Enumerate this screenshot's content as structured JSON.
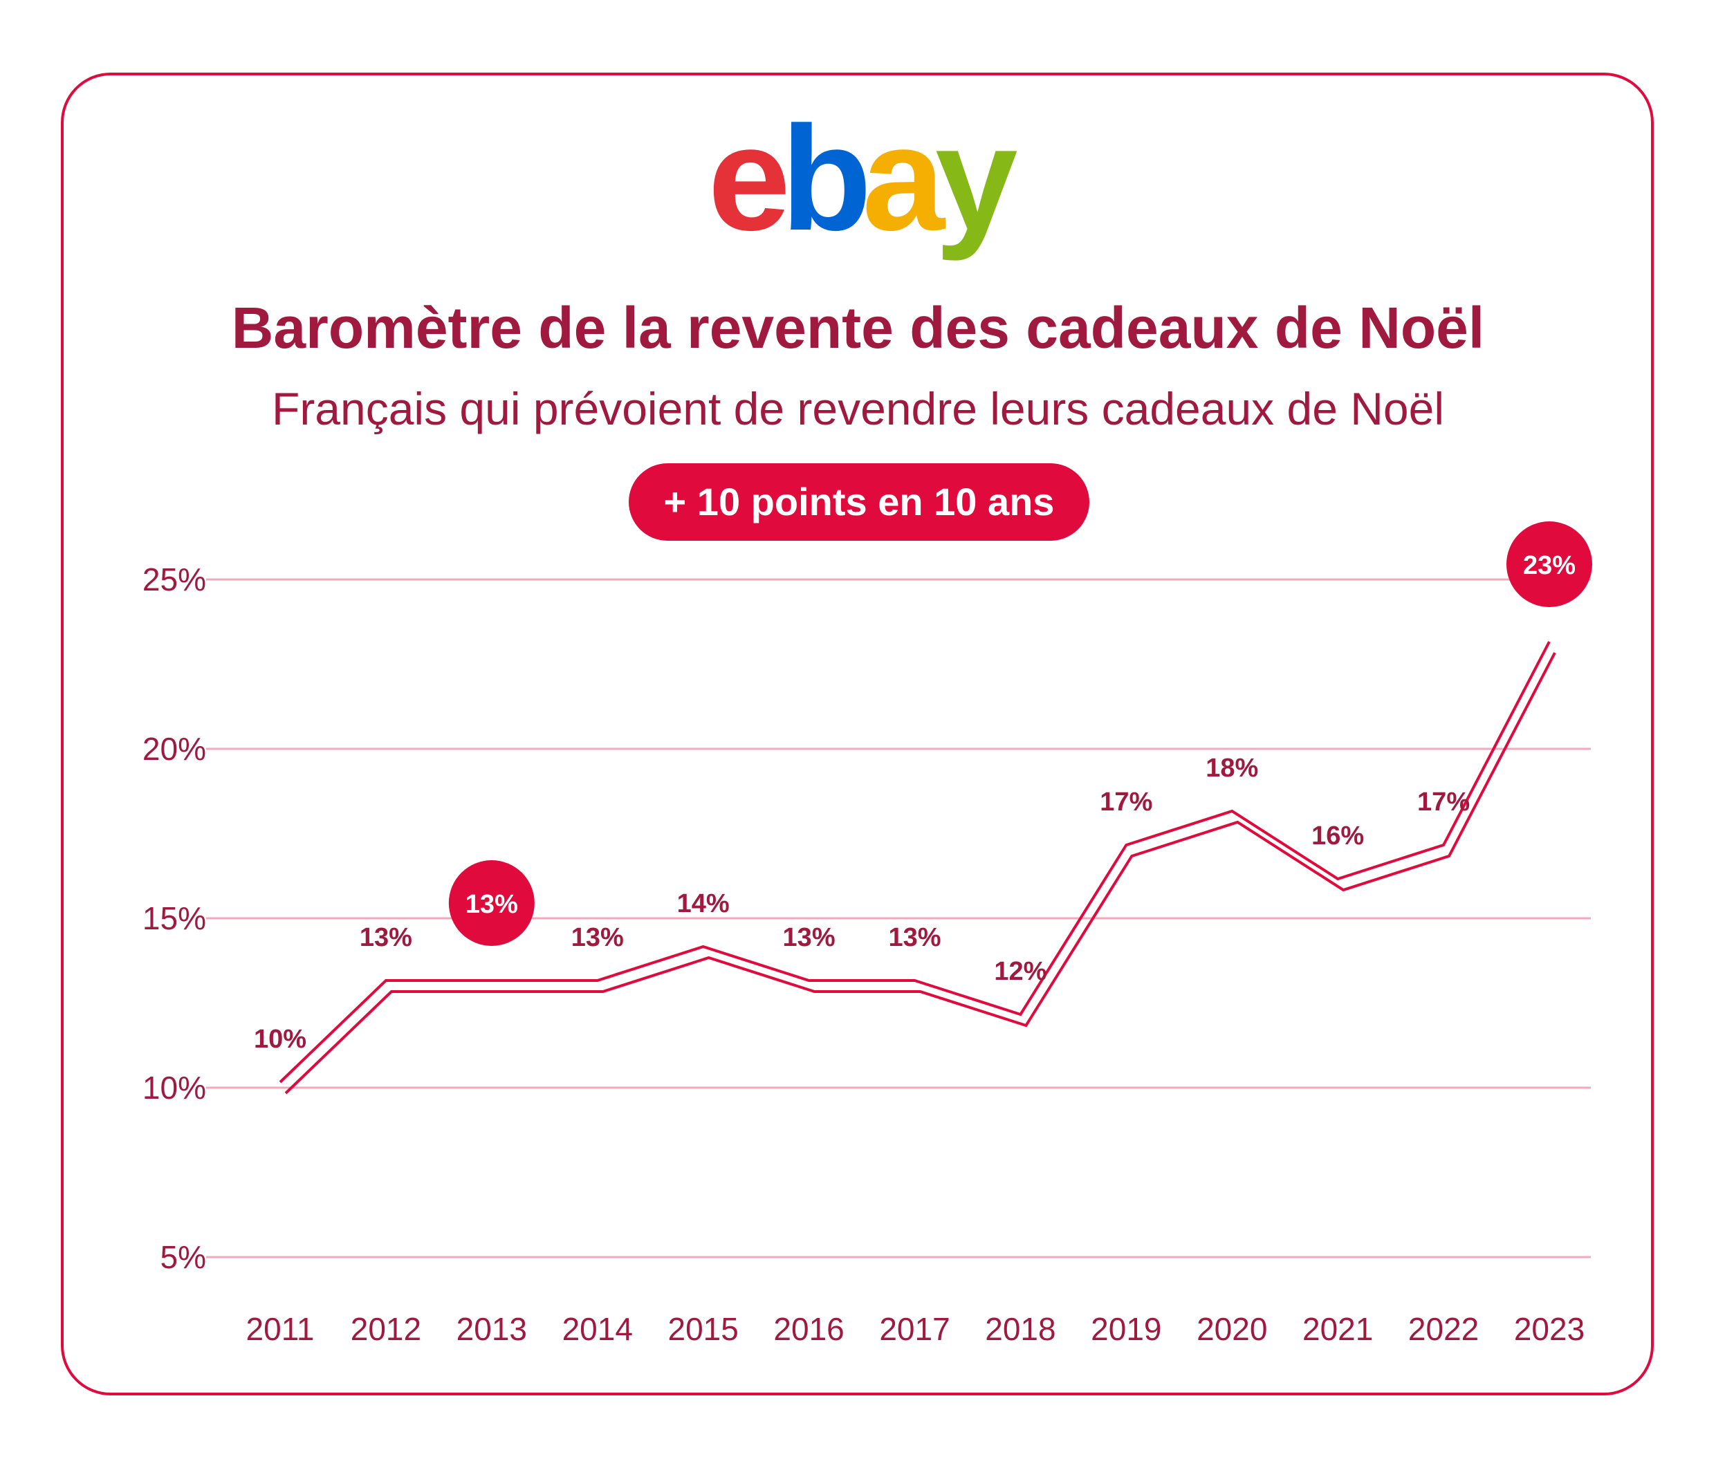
{
  "logo": {
    "text": "ebay",
    "letters": [
      {
        "char": "e",
        "color": "#e53238"
      },
      {
        "char": "b",
        "color": "#0064d2"
      },
      {
        "char": "a",
        "color": "#f5af02"
      },
      {
        "char": "y",
        "color": "#86b817"
      }
    ]
  },
  "header": {
    "title": "Baromètre de la revente des cadeaux de Noël",
    "subtitle": "Français qui prévoient de revendre leurs cadeaux de Noël",
    "badge": "+ 10 points en 10 ans"
  },
  "colors": {
    "accent": "#e10a3c",
    "text": "#a0193f",
    "grid": "#f3a9bb"
  },
  "chart_data": {
    "type": "line",
    "title": "Baromètre de la revente des cadeaux de Noël",
    "subtitle": "Français qui prévoient de revendre leurs cadeaux de Noël",
    "x": [
      "2011",
      "2012",
      "2013",
      "2014",
      "2015",
      "2016",
      "2017",
      "2018",
      "2019",
      "2020",
      "2021",
      "2022",
      "2023"
    ],
    "series": [
      {
        "values": [
          10,
          13,
          13,
          13,
          14,
          13,
          13,
          12,
          17,
          18,
          16,
          17,
          23
        ],
        "labels": [
          "10%",
          "13%",
          "13%",
          "13%",
          "14%",
          "13%",
          "13%",
          "12%",
          "17%",
          "18%",
          "16%",
          "17%",
          "23%"
        ],
        "highlighted": [
          "2013",
          "2023"
        ]
      }
    ],
    "yticks": [
      "5%",
      "10%",
      "15%",
      "20%",
      "25%"
    ],
    "ytick_values": [
      5,
      10,
      15,
      20,
      25
    ],
    "ylim": [
      5,
      25
    ],
    "grid": true,
    "xlabel": "",
    "ylabel": ""
  }
}
